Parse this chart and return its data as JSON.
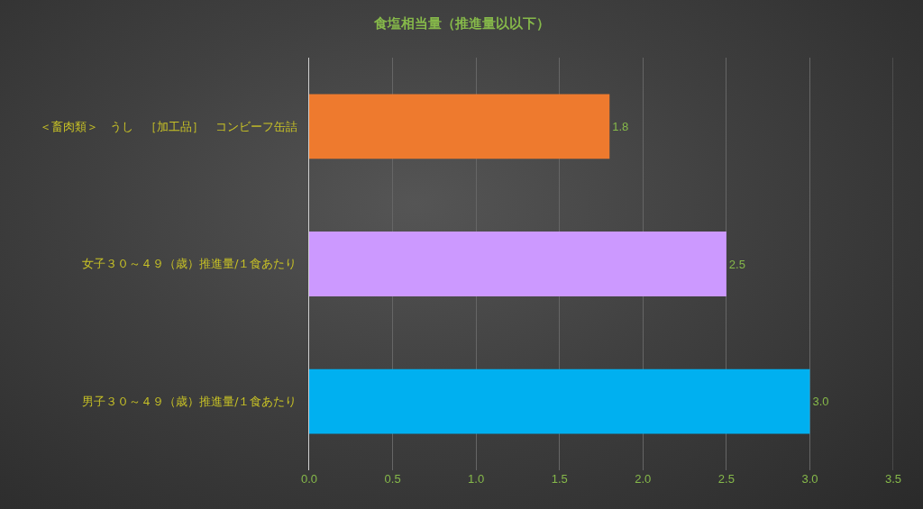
{
  "chart_data": {
    "type": "bar",
    "orientation": "horizontal",
    "title": "食塩相当量（推進量以以下）",
    "categories": [
      "＜畜肉類＞　うし　［加工品］　コンビーフ缶詰",
      "女子３０～４９（歳）推進量/１食あたり",
      "男子３０～４９（歳）推進量/１食あたり"
    ],
    "values": [
      1.8,
      2.5,
      3
    ],
    "colors": [
      "#ee7a2e",
      "#cc99ff",
      "#00b0f0"
    ],
    "value_labels": [
      "1.8",
      "2.5",
      "3.0"
    ],
    "xlim": [
      0,
      3.5
    ],
    "xticks": [
      {
        "value": 0,
        "label": "0.0"
      },
      0.5,
      {
        "value": 1,
        "label": "1.0"
      },
      1.5,
      {
        "value": 2,
        "label": "2.0"
      },
      2.5,
      {
        "value": 3,
        "label": "3.0"
      },
      3.5
    ],
    "grid": "x"
  }
}
